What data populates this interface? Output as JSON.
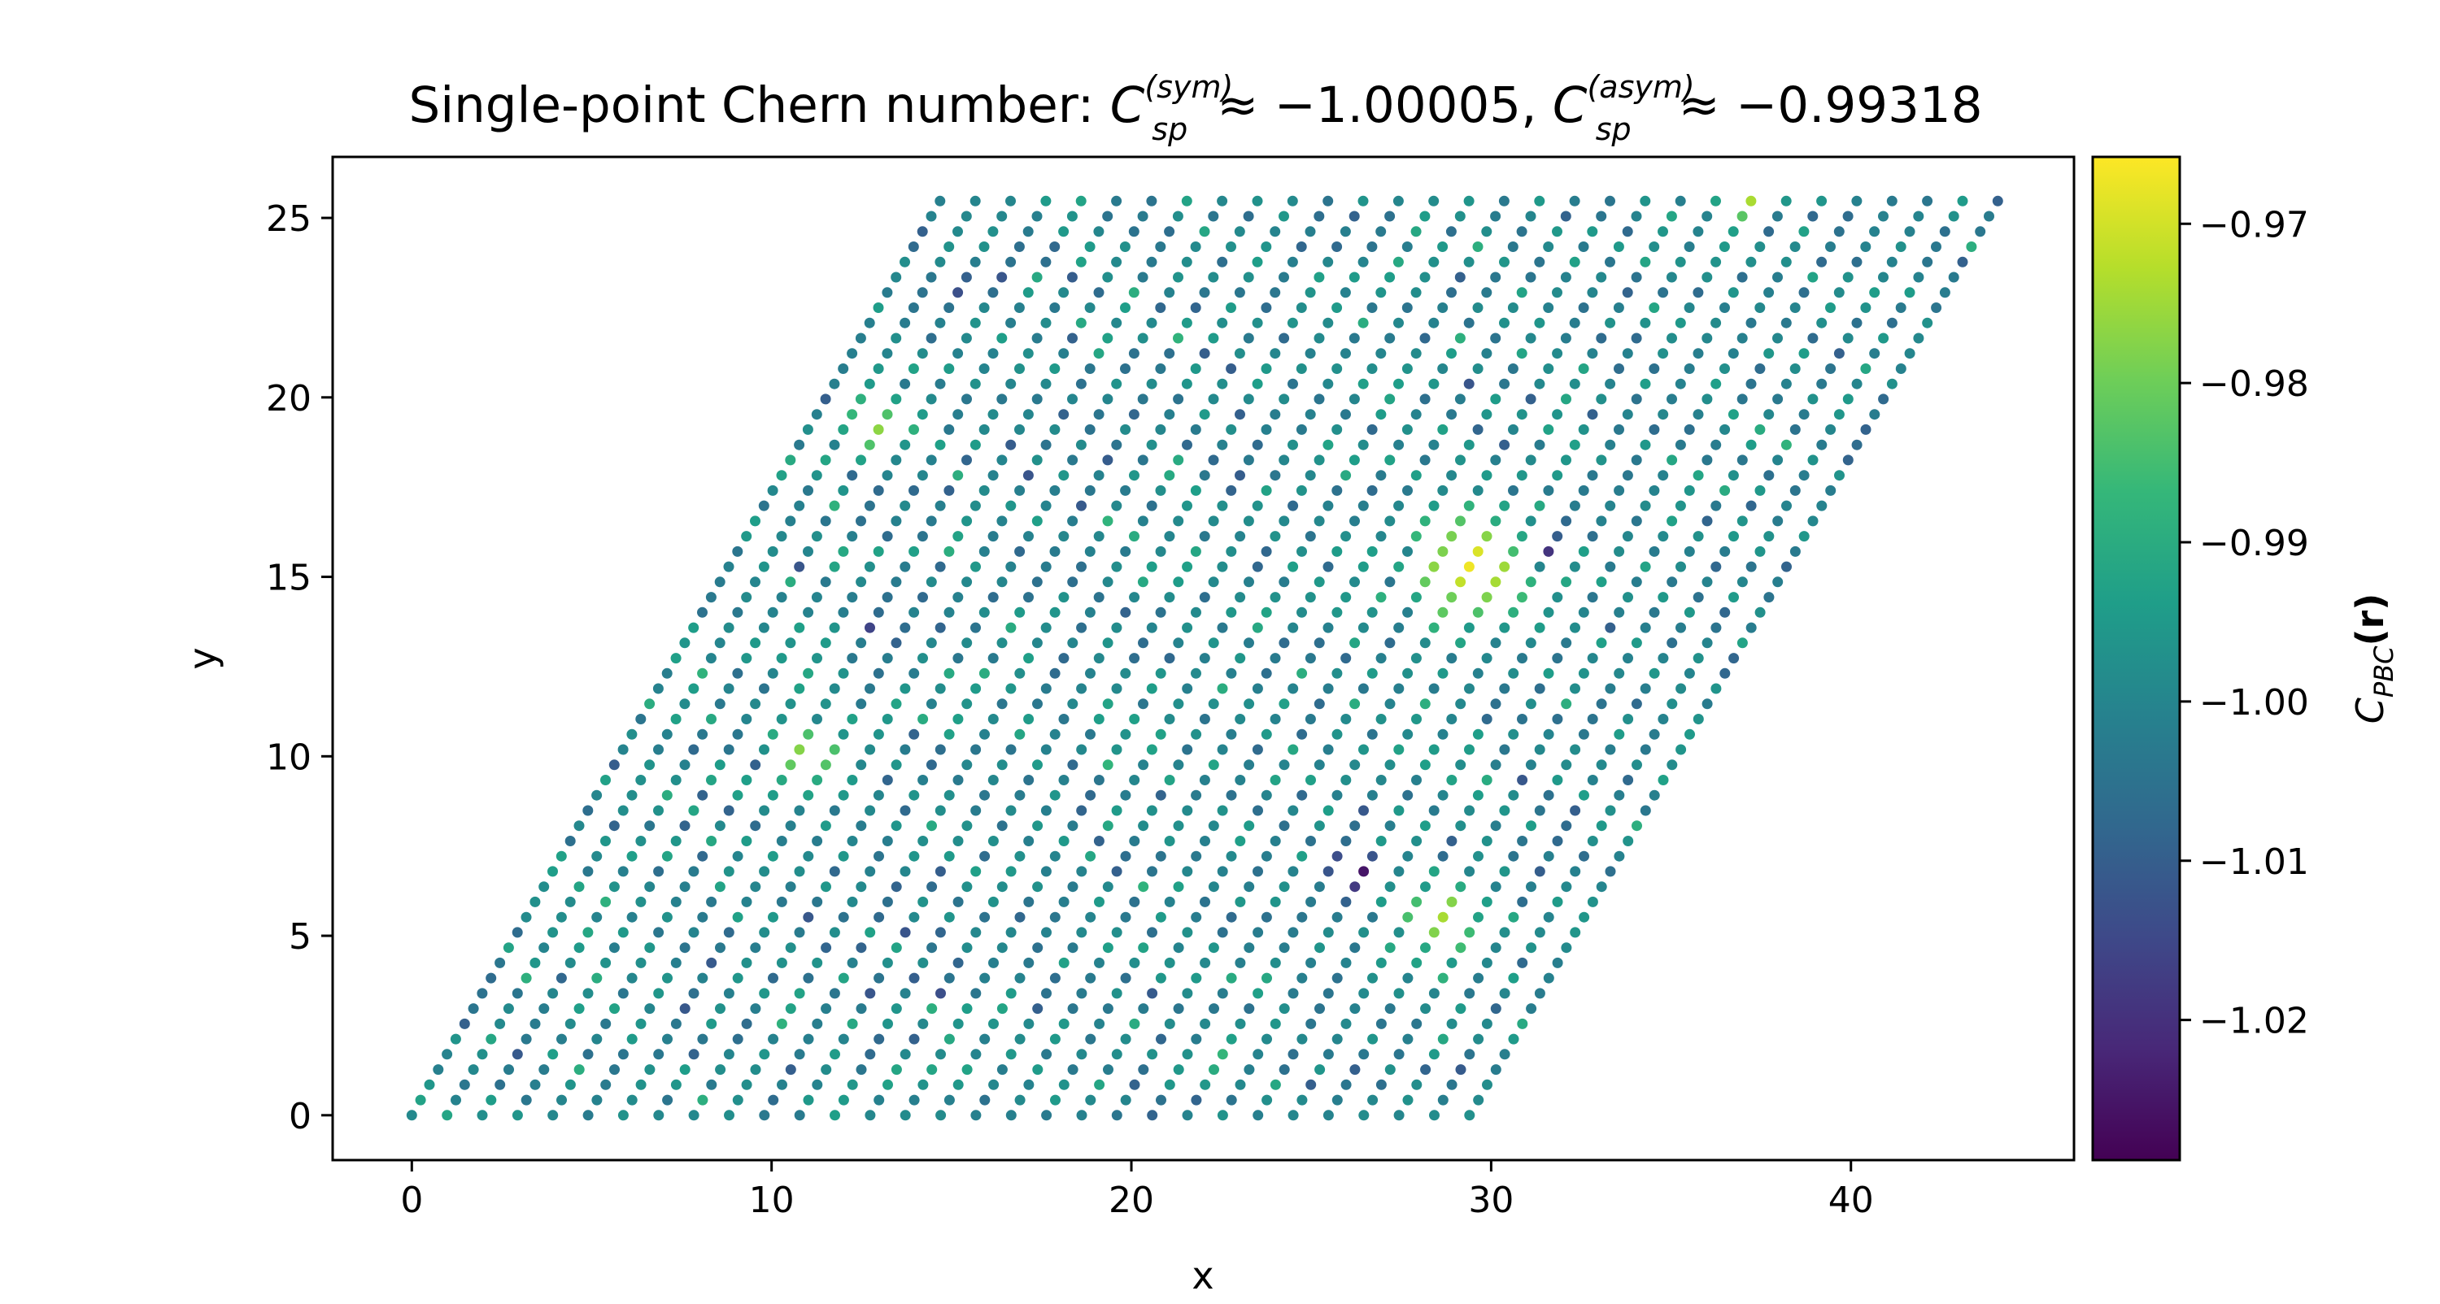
{
  "chart_data": {
    "type": "scatter",
    "title": {
      "prefix": "Single-point Chern number: ",
      "sym_base": "C",
      "sym_sub": "sp",
      "sym_sup": "(sym)",
      "sym_value": "≈ −1.00005",
      "separator": ", ",
      "asym_base": "C",
      "asym_sub": "sp",
      "asym_sup": "(asym)",
      "asym_value": "≈ −0.99318"
    },
    "xlabel": "x",
    "ylabel": "y",
    "xlim": [
      -2.2,
      46.2
    ],
    "ylim": [
      -1.25,
      26.7
    ],
    "xticks": [
      0,
      10,
      20,
      30,
      40
    ],
    "yticks": [
      0,
      5,
      10,
      15,
      20,
      25
    ],
    "grid": false,
    "lattice": {
      "description_from_axes": "rhombic triangular-lattice region",
      "corners": [
        [
          0,
          0
        ],
        [
          29.5,
          0
        ],
        [
          44,
          25.5
        ],
        [
          14.7,
          25.5
        ]
      ],
      "row_spacing": 0.4245,
      "column_spacing": 0.98,
      "rows": 61,
      "points_per_row": 31
    },
    "colorbar": {
      "label_base": "C",
      "label_sub": "PBC",
      "label_arg": "(r)",
      "colormap": "viridis",
      "vmin": -1.0288,
      "vmax": -0.9658,
      "ticks": [
        -0.97,
        -0.98,
        -0.99,
        -1.0,
        -1.01,
        -1.02
      ],
      "tick_labels": [
        "−0.97",
        "−0.98",
        "−0.99",
        "−1.00",
        "−1.01",
        "−1.02"
      ]
    },
    "hotspots": [
      {
        "x": 29.5,
        "y": 15.3,
        "value": -0.967,
        "radius": 1.6
      },
      {
        "x": 11.0,
        "y": 10.0,
        "value": -0.975,
        "radius": 0.9
      },
      {
        "x": 12.8,
        "y": 19.2,
        "value": -0.976,
        "radius": 0.9
      },
      {
        "x": 28.6,
        "y": 5.5,
        "value": -0.974,
        "radius": 1.1
      },
      {
        "x": 37.0,
        "y": 25.5,
        "value": -0.971,
        "radius": 0.7
      },
      {
        "x": 26.2,
        "y": 6.8,
        "value": -1.029,
        "radius": 0.7
      },
      {
        "x": 31.5,
        "y": 15.9,
        "value": -1.026,
        "radius": 0.5
      },
      {
        "x": 13.0,
        "y": 13.4,
        "value": -1.024,
        "radius": 0.5
      },
      {
        "x": 14.8,
        "y": 23.0,
        "value": -1.024,
        "radius": 0.5
      }
    ],
    "value_noise": {
      "mean": -1.0,
      "spread": 0.0095
    }
  },
  "colors": {
    "viridis": [
      "#440154",
      "#482878",
      "#3e4989",
      "#31688e",
      "#26828e",
      "#1f9e89",
      "#35b779",
      "#6ece58",
      "#b5de2b",
      "#fde725"
    ]
  }
}
